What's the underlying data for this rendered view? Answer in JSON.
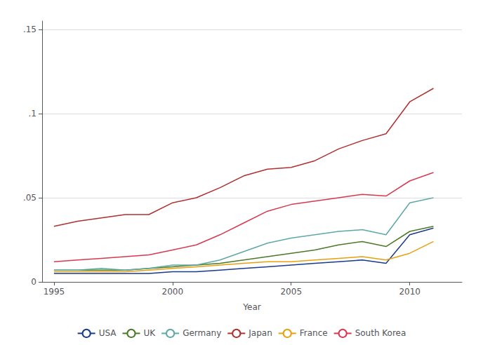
{
  "chart_data": {
    "type": "line",
    "xlabel": "Year",
    "x": [
      1995,
      1996,
      1997,
      1998,
      1999,
      2000,
      2001,
      2002,
      2003,
      2004,
      2005,
      2006,
      2007,
      2008,
      2009,
      2010,
      2011
    ],
    "series": [
      {
        "name": "USA",
        "color": "#1a3a8a",
        "values": [
          0.005,
          0.005,
          0.005,
          0.005,
          0.005,
          0.006,
          0.006,
          0.007,
          0.008,
          0.009,
          0.01,
          0.011,
          0.012,
          0.013,
          0.011,
          0.028,
          0.032
        ]
      },
      {
        "name": "UK",
        "color": "#4a7a28",
        "values": [
          0.007,
          0.007,
          0.007,
          0.007,
          0.008,
          0.009,
          0.01,
          0.011,
          0.013,
          0.015,
          0.017,
          0.019,
          0.022,
          0.024,
          0.021,
          0.03,
          0.033
        ]
      },
      {
        "name": "Germany",
        "color": "#5fa8a5",
        "values": [
          0.007,
          0.007,
          0.008,
          0.007,
          0.008,
          0.01,
          0.01,
          0.013,
          0.018,
          0.023,
          0.026,
          0.028,
          0.03,
          0.031,
          0.028,
          0.047,
          0.05
        ]
      },
      {
        "name": "Japan",
        "color": "#b03030",
        "values": [
          0.033,
          0.036,
          0.038,
          0.04,
          0.04,
          0.047,
          0.05,
          0.056,
          0.063,
          0.067,
          0.068,
          0.072,
          0.079,
          0.084,
          0.088,
          0.107,
          0.115
        ]
      },
      {
        "name": "France",
        "color": "#e8a010",
        "values": [
          0.006,
          0.006,
          0.006,
          0.006,
          0.007,
          0.008,
          0.009,
          0.01,
          0.011,
          0.012,
          0.012,
          0.013,
          0.014,
          0.015,
          0.013,
          0.017,
          0.024
        ]
      },
      {
        "name": "South Korea",
        "color": "#d83850",
        "values": [
          0.012,
          0.013,
          0.014,
          0.015,
          0.016,
          0.019,
          0.022,
          0.028,
          0.035,
          0.042,
          0.046,
          0.048,
          0.05,
          0.052,
          0.051,
          0.06,
          0.065
        ]
      }
    ],
    "xlim": [
      1994.5,
      2012.2
    ],
    "xticks": [
      1995,
      2000,
      2005,
      2010
    ],
    "ylim": [
      0,
      0.155
    ],
    "yticks": [
      0,
      {
        "value": 0.05,
        "label": ".05"
      },
      {
        "value": 0.1,
        "label": ".1"
      },
      {
        "value": 0.15,
        "label": ".15"
      }
    ],
    "grid": true,
    "legend": "bottom"
  }
}
